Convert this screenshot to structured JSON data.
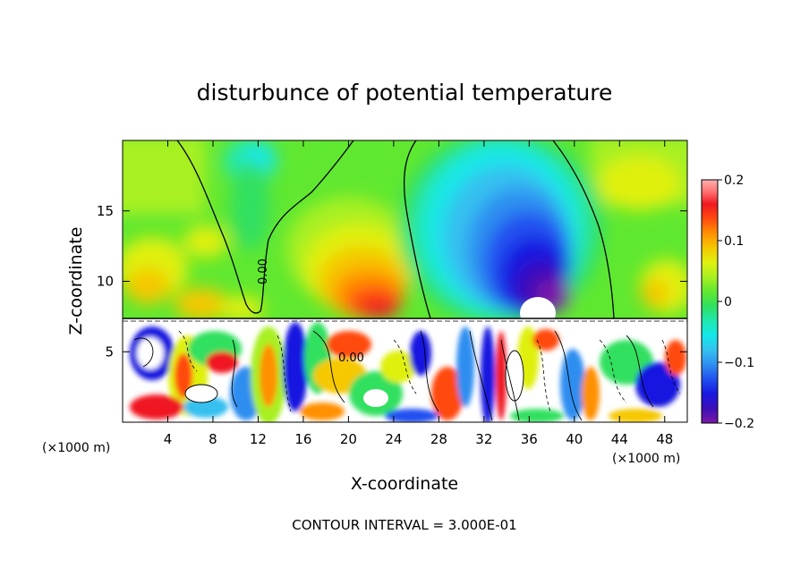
{
  "chart_data": {
    "type": "heatmap",
    "title": "disturbunce of potential temperature",
    "xlabel": "X-coordinate",
    "ylabel": "Z-coordinate",
    "x_unit_left": "(×1000 m)",
    "x_unit_right": "(×1000 m)",
    "xlim": [
      0,
      50
    ],
    "ylim": [
      0,
      20
    ],
    "x_ticks": [
      4,
      8,
      12,
      16,
      20,
      24,
      28,
      32,
      36,
      40,
      44,
      48
    ],
    "y_ticks": [
      5,
      10,
      15
    ],
    "colorbar": {
      "range": [
        -0.2,
        0.2
      ],
      "ticks": [
        {
          "value": 0.2,
          "label": "0.2"
        },
        {
          "value": 0.1,
          "label": "0.1"
        },
        {
          "value": 0,
          "label": "0"
        },
        {
          "value": -0.1,
          "label": "−0.1"
        },
        {
          "value": -0.2,
          "label": "−0.2"
        }
      ],
      "colors": [
        "#7a18a8",
        "#3c10b8",
        "#1818e0",
        "#2050f0",
        "#2f8ef0",
        "#35c0f0",
        "#12e8e8",
        "#20e8b0",
        "#30e060",
        "#60e830",
        "#a8f020",
        "#e0f010",
        "#f5c800",
        "#ff9000",
        "#ff4a10",
        "#f01820",
        "#ff7070",
        "#ffb0b0"
      ]
    },
    "zero_contour_label": "0.00",
    "contour_interval_text": "CONTOUR INTERVAL = 3.000E-01",
    "notes_upper_region": {
      "positive_max_near_x": 22,
      "negative_min_near_x": 37,
      "layer_boundary_z": 7.3
    }
  }
}
